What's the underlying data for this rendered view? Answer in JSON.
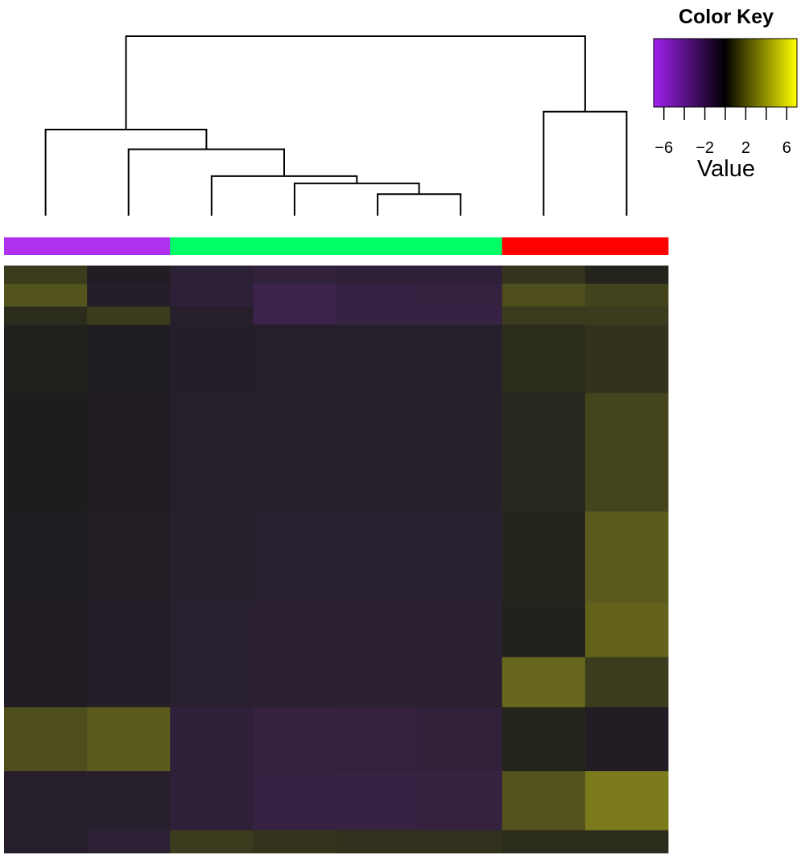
{
  "chart_data": {
    "type": "heatmap",
    "colors": {
      "low": "#a020f0",
      "mid": "#000000",
      "high": "#ffff00"
    },
    "color_key": {
      "title": "Color Key",
      "xlabel": "Value",
      "range": [
        -7,
        7
      ],
      "ticks": [
        "−6",
        "−2",
        "2",
        "6"
      ],
      "tick_values": [
        -6,
        -2,
        2,
        6
      ]
    },
    "column_groups": [
      {
        "columns": [
          0,
          1
        ],
        "color": "#b030f0"
      },
      {
        "columns": [
          2,
          3,
          4,
          5
        ],
        "color": "#00ff66"
      },
      {
        "columns": [
          6,
          7
        ],
        "color": "#ff0000"
      }
    ],
    "dendrogram_merges": [
      {
        "a": 4,
        "b": 5,
        "height": 0.12
      },
      {
        "a": 3,
        "b": "m0",
        "height": 0.18
      },
      {
        "a": 2,
        "b": "m1",
        "height": 0.22
      },
      {
        "a": 1,
        "b": "m2",
        "height": 0.37
      },
      {
        "a": 0,
        "b": "m3",
        "height": 0.48
      },
      {
        "a": 6,
        "b": 7,
        "height": 0.58
      },
      {
        "a": "m4",
        "b": "m5",
        "height": 1.0
      }
    ],
    "row_blocks": [
      {
        "rows": 20,
        "values": [
          1.2,
          -0.3,
          -1.0,
          -1.3,
          -1.2,
          -1.2,
          1.0,
          0.3
        ]
      },
      {
        "rows": 25,
        "values": [
          2.2,
          -0.5,
          -1.2,
          -2.0,
          -1.6,
          -1.5,
          2.0,
          1.5
        ]
      },
      {
        "rows": 20,
        "values": [
          0.6,
          1.2,
          -0.6,
          -2.0,
          -1.6,
          -1.6,
          1.2,
          1.2
        ]
      },
      {
        "rows": 75,
        "values": [
          0.1,
          -0.2,
          -0.5,
          -0.6,
          -0.6,
          -0.6,
          0.6,
          0.9
        ]
      },
      {
        "rows": 130,
        "values": [
          0.0,
          -0.3,
          -0.6,
          -0.7,
          -0.7,
          -0.7,
          0.4,
          1.6
        ]
      },
      {
        "rows": 100,
        "values": [
          -0.2,
          -0.4,
          -0.7,
          -0.8,
          -0.8,
          -0.8,
          0.3,
          2.5
        ]
      },
      {
        "rows": 60,
        "values": [
          -0.3,
          -0.5,
          -0.8,
          -0.9,
          -0.9,
          -0.9,
          0.2,
          2.8
        ]
      },
      {
        "rows": 55,
        "values": [
          -0.3,
          -0.5,
          -0.8,
          -0.9,
          -0.9,
          -0.9,
          3.0,
          1.2
        ]
      },
      {
        "rows": 70,
        "values": [
          2.0,
          2.5,
          -1.2,
          -1.5,
          -1.4,
          -1.3,
          0.3,
          -0.3
        ]
      },
      {
        "rows": 65,
        "values": [
          -0.6,
          -0.7,
          -1.2,
          -1.6,
          -1.6,
          -1.5,
          2.2,
          3.8
        ]
      },
      {
        "rows": 25,
        "values": [
          -0.6,
          -1.0,
          1.2,
          1.0,
          0.8,
          0.8,
          0.6,
          0.6
        ]
      }
    ]
  }
}
